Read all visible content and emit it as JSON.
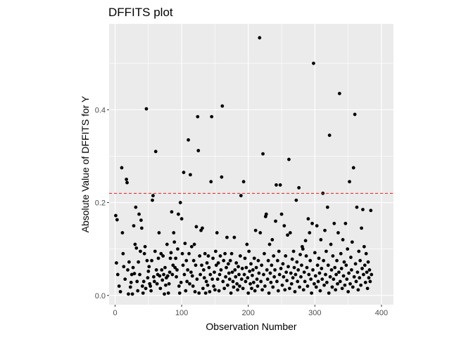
{
  "chart_data": {
    "type": "scatter",
    "title": "DFFITS plot",
    "xlabel": "Observation Number",
    "ylabel": "Absolute Value of DFFITS for Y",
    "xlim": [
      -9,
      418
    ],
    "ylim": [
      -0.02,
      0.585
    ],
    "xticks": [
      0,
      100,
      200,
      300,
      400
    ],
    "xtick_labels": [
      "0",
      "100",
      "200",
      "300",
      "400"
    ],
    "yticks": [
      0.0,
      0.2,
      0.4
    ],
    "ytick_labels": [
      "0.0",
      "0.2",
      "0.4"
    ],
    "grid": true,
    "threshold": 0.22,
    "threshold_color": "#e41a1c",
    "panel_background": "#ebebeb",
    "grid_color": "#ffffff",
    "point_color": "#000000",
    "points": [
      [
        1,
        0.172
      ],
      [
        3,
        0.163
      ],
      [
        2,
        0.07
      ],
      [
        4,
        0.045
      ],
      [
        6,
        0.02
      ],
      [
        8,
        0.008
      ],
      [
        10,
        0.275
      ],
      [
        11,
        0.135
      ],
      [
        12,
        0.09
      ],
      [
        13,
        0.062
      ],
      [
        15,
        0.035
      ],
      [
        17,
        0.25
      ],
      [
        18,
        0.243
      ],
      [
        19,
        0.055
      ],
      [
        20,
        0.003
      ],
      [
        21,
        0.072
      ],
      [
        23,
        0.018
      ],
      [
        24,
        0.028
      ],
      [
        25,
        0.045
      ],
      [
        26,
        0.003
      ],
      [
        27,
        0.06
      ],
      [
        28,
        0.15
      ],
      [
        29,
        0.047
      ],
      [
        30,
        0.11
      ],
      [
        31,
        0.19
      ],
      [
        32,
        0.102
      ],
      [
        33,
        0.03
      ],
      [
        34,
        0.01
      ],
      [
        35,
        0.072
      ],
      [
        36,
        0.175
      ],
      [
        37,
        0.045
      ],
      [
        38,
        0.095
      ],
      [
        39,
        0.162
      ],
      [
        40,
        0.145
      ],
      [
        41,
        0.02
      ],
      [
        42,
        0.005
      ],
      [
        43,
        0.03
      ],
      [
        44,
        0.09
      ],
      [
        45,
        0.105
      ],
      [
        46,
        0.015
      ],
      [
        47,
        0.402
      ],
      [
        48,
        0.075
      ],
      [
        49,
        0.038
      ],
      [
        50,
        0.052
      ],
      [
        51,
        0.062
      ],
      [
        52,
        0.025
      ],
      [
        53,
        0.02
      ],
      [
        54,
        0.01
      ],
      [
        55,
        0.075
      ],
      [
        56,
        0.205
      ],
      [
        57,
        0.215
      ],
      [
        58,
        0.04
      ],
      [
        59,
        0.03
      ],
      [
        60,
        0.095
      ],
      [
        61,
        0.31
      ],
      [
        62,
        0.055
      ],
      [
        63,
        0.025
      ],
      [
        64,
        0.045
      ],
      [
        65,
        0.08
      ],
      [
        66,
        0.135
      ],
      [
        67,
        0.042
      ],
      [
        68,
        0.015
      ],
      [
        69,
        0.09
      ],
      [
        70,
        0.055
      ],
      [
        71,
        0.033
      ],
      [
        72,
        0.085
      ],
      [
        73,
        0.045
      ],
      [
        74,
        0.003
      ],
      [
        75,
        0.06
      ],
      [
        76,
        0.022
      ],
      [
        77,
        0.038
      ],
      [
        78,
        0.11
      ],
      [
        79,
        0.042
      ],
      [
        80,
        0.005
      ],
      [
        81,
        0.025
      ],
      [
        82,
        0.05
      ],
      [
        83,
        0.08
      ],
      [
        84,
        0.092
      ],
      [
        85,
        0.18
      ],
      [
        86,
        0.045
      ],
      [
        87,
        0.065
      ],
      [
        88,
        0.135
      ],
      [
        89,
        0.115
      ],
      [
        90,
        0.06
      ],
      [
        91,
        0.08
      ],
      [
        92,
        0.04
      ],
      [
        93,
        0.055
      ],
      [
        94,
        0.1
      ],
      [
        95,
        0.175
      ],
      [
        96,
        0.02
      ],
      [
        97,
        0.005
      ],
      [
        98,
        0.2
      ],
      [
        99,
        0.028
      ],
      [
        100,
        0.165
      ],
      [
        101,
        0.09
      ],
      [
        102,
        0.065
      ],
      [
        103,
        0.265
      ],
      [
        104,
        0.045
      ],
      [
        105,
        0.112
      ],
      [
        106,
        0.01
      ],
      [
        107,
        0.075
      ],
      [
        108,
        0.03
      ],
      [
        109,
        0.055
      ],
      [
        110,
        0.335
      ],
      [
        111,
        0.09
      ],
      [
        112,
        0.025
      ],
      [
        113,
        0.26
      ],
      [
        114,
        0.05
      ],
      [
        115,
        0.105
      ],
      [
        116,
        0.042
      ],
      [
        117,
        0.02
      ],
      [
        118,
        0.075
      ],
      [
        119,
        0.11
      ],
      [
        120,
        0.008
      ],
      [
        121,
        0.065
      ],
      [
        122,
        0.148
      ],
      [
        123,
        0.035
      ],
      [
        124,
        0.385
      ],
      [
        125,
        0.312
      ],
      [
        126,
        0.005
      ],
      [
        127,
        0.085
      ],
      [
        128,
        0.045
      ],
      [
        129,
        0.14
      ],
      [
        130,
        0.065
      ],
      [
        131,
        0.145
      ],
      [
        132,
        0.015
      ],
      [
        133,
        0.055
      ],
      [
        134,
        0.038
      ],
      [
        135,
        0.09
      ],
      [
        136,
        0.005
      ],
      [
        137,
        0.03
      ],
      [
        138,
        0.07
      ],
      [
        139,
        0.022
      ],
      [
        140,
        0.085
      ],
      [
        141,
        0.06
      ],
      [
        142,
        0.008
      ],
      [
        143,
        0.045
      ],
      [
        144,
        0.245
      ],
      [
        145,
        0.385
      ],
      [
        146,
        0.035
      ],
      [
        147,
        0.08
      ],
      [
        148,
        0.02
      ],
      [
        149,
        0.05
      ],
      [
        150,
        0.012
      ],
      [
        151,
        0.095
      ],
      [
        152,
        0.065
      ],
      [
        153,
        0.135
      ],
      [
        154,
        0.035
      ],
      [
        155,
        0.07
      ],
      [
        156,
        0.01
      ],
      [
        157,
        0.045
      ],
      [
        158,
        0.085
      ],
      [
        159,
        0.055
      ],
      [
        160,
        0.255
      ],
      [
        161,
        0.408
      ],
      [
        162,
        0.03
      ],
      [
        163,
        0.075
      ],
      [
        164,
        0.015
      ],
      [
        165,
        0.09
      ],
      [
        166,
        0.04
      ],
      [
        167,
        0.06
      ],
      [
        168,
        0.125
      ],
      [
        169,
        0.022
      ],
      [
        170,
        0.068
      ],
      [
        171,
        0.048
      ],
      [
        172,
        0.035
      ],
      [
        173,
        0.075
      ],
      [
        174,
        0.005
      ],
      [
        175,
        0.09
      ],
      [
        176,
        0.05
      ],
      [
        177,
        0.03
      ],
      [
        178,
        0.018
      ],
      [
        179,
        0.125
      ],
      [
        180,
        0.055
      ],
      [
        181,
        0.04
      ],
      [
        182,
        0.07
      ],
      [
        183,
        0.025
      ],
      [
        184,
        0.012
      ],
      [
        185,
        0.062
      ],
      [
        186,
        0.045
      ],
      [
        187,
        0.02
      ],
      [
        188,
        0.085
      ],
      [
        189,
        0.215
      ],
      [
        190,
        0.035
      ],
      [
        191,
        0.058
      ],
      [
        192,
        0.015
      ],
      [
        193,
        0.245
      ],
      [
        194,
        0.045
      ],
      [
        195,
        0.08
      ],
      [
        196,
        0.03
      ],
      [
        197,
        0.06
      ],
      [
        198,
        0.11
      ],
      [
        199,
        0.038
      ],
      [
        200,
        0.005
      ],
      [
        201,
        0.095
      ],
      [
        202,
        0.052
      ],
      [
        203,
        0.025
      ],
      [
        204,
        0.068
      ],
      [
        205,
        0.015
      ],
      [
        206,
        0.043
      ],
      [
        207,
        0.055
      ],
      [
        208,
        0.028
      ],
      [
        209,
        0.08
      ],
      [
        210,
        0.01
      ],
      [
        211,
        0.14
      ],
      [
        212,
        0.06
      ],
      [
        213,
        0.035
      ],
      [
        214,
        0.02
      ],
      [
        215,
        0.075
      ],
      [
        216,
        0.048
      ],
      [
        217,
        0.555
      ],
      [
        218,
        0.135
      ],
      [
        219,
        0.03
      ],
      [
        220,
        0.065
      ],
      [
        221,
        0.012
      ],
      [
        222,
        0.305
      ],
      [
        223,
        0.045
      ],
      [
        224,
        0.09
      ],
      [
        225,
        0.02
      ],
      [
        226,
        0.17
      ],
      [
        227,
        0.175
      ],
      [
        228,
        0.055
      ],
      [
        229,
        0.035
      ],
      [
        230,
        0.075
      ],
      [
        231,
        0.005
      ],
      [
        232,
        0.11
      ],
      [
        233,
        0.048
      ],
      [
        234,
        0.028
      ],
      [
        235,
        0.065
      ],
      [
        236,
        0.12
      ],
      [
        237,
        0.018
      ],
      [
        238,
        0.085
      ],
      [
        239,
        0.04
      ],
      [
        240,
        0.055
      ],
      [
        241,
        0.16
      ],
      [
        242,
        0.238
      ],
      [
        243,
        0.03
      ],
      [
        244,
        0.075
      ],
      [
        245,
        0.01
      ],
      [
        246,
        0.095
      ],
      [
        247,
        0.045
      ],
      [
        248,
        0.238
      ],
      [
        249,
        0.058
      ],
      [
        250,
        0.175
      ],
      [
        251,
        0.022
      ],
      [
        252,
        0.068
      ],
      [
        253,
        0.04
      ],
      [
        254,
        0.15
      ],
      [
        255,
        0.012
      ],
      [
        256,
        0.085
      ],
      [
        257,
        0.05
      ],
      [
        258,
        0.032
      ],
      [
        259,
        0.13
      ],
      [
        260,
        0.062
      ],
      [
        261,
        0.293
      ],
      [
        262,
        0.015
      ],
      [
        263,
        0.135
      ],
      [
        264,
        0.048
      ],
      [
        265,
        0.025
      ],
      [
        266,
        0.078
      ],
      [
        267,
        0.038
      ],
      [
        268,
        0.095
      ],
      [
        269,
        0.06
      ],
      [
        270,
        0.008
      ],
      [
        271,
        0.045
      ],
      [
        272,
        0.205
      ],
      [
        273,
        0.072
      ],
      [
        274,
        0.03
      ],
      [
        275,
        0.055
      ],
      [
        276,
        0.232
      ],
      [
        277,
        0.018
      ],
      [
        278,
        0.088
      ],
      [
        279,
        0.04
      ],
      [
        280,
        0.065
      ],
      [
        281,
        0.105
      ],
      [
        282,
        0.1
      ],
      [
        283,
        0.012
      ],
      [
        284,
        0.05
      ],
      [
        285,
        0.03
      ],
      [
        286,
        0.118
      ],
      [
        287,
        0.085
      ],
      [
        288,
        0.06
      ],
      [
        289,
        0.02
      ],
      [
        290,
        0.165
      ],
      [
        291,
        0.045
      ],
      [
        292,
        0.135
      ],
      [
        293,
        0.075
      ],
      [
        294,
        0.035
      ],
      [
        295,
        0.005
      ],
      [
        296,
        0.155
      ],
      [
        297,
        0.055
      ],
      [
        298,
        0.5
      ],
      [
        299,
        0.025
      ],
      [
        300,
        0.092
      ],
      [
        301,
        0.042
      ],
      [
        302,
        0.018
      ],
      [
        303,
        0.15
      ],
      [
        304,
        0.065
      ],
      [
        305,
        0.03
      ],
      [
        306,
        0.08
      ],
      [
        307,
        0.048
      ],
      [
        308,
        0.01
      ],
      [
        309,
        0.12
      ],
      [
        310,
        0.058
      ],
      [
        311,
        0.035
      ],
      [
        312,
        0.22
      ],
      [
        313,
        0.075
      ],
      [
        314,
        0.022
      ],
      [
        315,
        0.14
      ],
      [
        316,
        0.045
      ],
      [
        317,
        0.095
      ],
      [
        318,
        0.028
      ],
      [
        319,
        0.19
      ],
      [
        320,
        0.065
      ],
      [
        321,
        0.005
      ],
      [
        322,
        0.345
      ],
      [
        323,
        0.04
      ],
      [
        324,
        0.11
      ],
      [
        325,
        0.055
      ],
      [
        326,
        0.018
      ],
      [
        327,
        0.085
      ],
      [
        328,
        0.035
      ],
      [
        329,
        0.155
      ],
      [
        330,
        0.06
      ],
      [
        331,
        0.012
      ],
      [
        332,
        0.045
      ],
      [
        333,
        0.075
      ],
      [
        334,
        0.025
      ],
      [
        335,
        0.135
      ],
      [
        336,
        0.05
      ],
      [
        337,
        0.435
      ],
      [
        338,
        0.03
      ],
      [
        339,
        0.09
      ],
      [
        340,
        0.058
      ],
      [
        341,
        0.015
      ],
      [
        342,
        0.12
      ],
      [
        343,
        0.042
      ],
      [
        344,
        0.072
      ],
      [
        345,
        0.022
      ],
      [
        346,
        0.155
      ],
      [
        347,
        0.065
      ],
      [
        348,
        0.035
      ],
      [
        349,
        0.1
      ],
      [
        350,
        0.008
      ],
      [
        351,
        0.048
      ],
      [
        352,
        0.245
      ],
      [
        353,
        0.025
      ],
      [
        354,
        0.082
      ],
      [
        355,
        0.055
      ],
      [
        356,
        0.115
      ],
      [
        357,
        0.018
      ],
      [
        358,
        0.275
      ],
      [
        359,
        0.04
      ],
      [
        360,
        0.39
      ],
      [
        361,
        0.068
      ],
      [
        362,
        0.03
      ],
      [
        363,
        0.19
      ],
      [
        364,
        0.05
      ],
      [
        365,
        0.012
      ],
      [
        366,
        0.095
      ],
      [
        367,
        0.038
      ],
      [
        368,
        0.075
      ],
      [
        369,
        0.022
      ],
      [
        370,
        0.145
      ],
      [
        371,
        0.058
      ],
      [
        372,
        0.185
      ],
      [
        373,
        0.045
      ],
      [
        374,
        0.105
      ],
      [
        375,
        0.065
      ],
      [
        376,
        0.028
      ],
      [
        377,
        0.09
      ],
      [
        378,
        0.05
      ],
      [
        379,
        0.015
      ],
      [
        380,
        0.072
      ],
      [
        381,
        0.038
      ],
      [
        382,
        0.055
      ],
      [
        383,
        0.03
      ],
      [
        384,
        0.183
      ],
      [
        385,
        0.045
      ]
    ]
  }
}
